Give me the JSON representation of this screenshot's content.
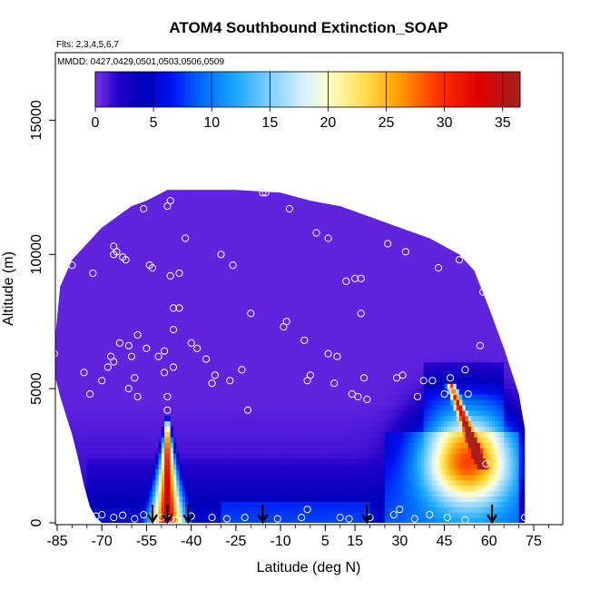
{
  "chart_data": {
    "type": "heatmap",
    "title": "ATOM4 Southbound Extinction_SOAP",
    "flights_label": "Flts: 2,3,4,5,6,7",
    "dates_label": "MMDD: 0427,0429,0501,0503,0506,0509",
    "xlabel": "Latitude (deg N)",
    "ylabel": "Altitude (m)",
    "xlim": [
      -88,
      82
    ],
    "ylim": [
      0,
      17500
    ],
    "x_ticks": [
      -85,
      -70,
      -55,
      -40,
      -25,
      -10,
      5,
      15,
      30,
      45,
      60,
      75
    ],
    "y_ticks": [
      0,
      5000,
      10000,
      15000
    ],
    "colorbar": {
      "min": 0,
      "max": 36.5,
      "ticks": [
        0,
        5,
        10,
        15,
        20,
        25,
        30,
        35
      ]
    },
    "coverage_top_m": [
      [
        -86,
        6500
      ],
      [
        -84,
        8800
      ],
      [
        -80,
        9800
      ],
      [
        -75,
        10400
      ],
      [
        -70,
        11000
      ],
      [
        -65,
        11400
      ],
      [
        -60,
        11800
      ],
      [
        -55,
        12000
      ],
      [
        -48,
        12400
      ],
      [
        -40,
        12400
      ],
      [
        -25,
        12400
      ],
      [
        -10,
        12300
      ],
      [
        0,
        12000
      ],
      [
        10,
        11800
      ],
      [
        20,
        11400
      ],
      [
        30,
        11000
      ],
      [
        40,
        10600
      ],
      [
        50,
        10000
      ],
      [
        55,
        9400
      ],
      [
        60,
        8000
      ],
      [
        65,
        6500
      ],
      [
        70,
        4800
      ],
      [
        72,
        3500
      ]
    ],
    "coverage_bottom_m": [
      [
        -86,
        5600
      ],
      [
        -84,
        4700
      ],
      [
        -82,
        4000
      ],
      [
        -80,
        3300
      ],
      [
        -78,
        2400
      ],
      [
        -76,
        1400
      ],
      [
        -74,
        600
      ],
      [
        -72,
        200
      ],
      [
        -70,
        0
      ],
      [
        72,
        0
      ]
    ],
    "plumes": [
      {
        "name": "southern-hemisphere-tropical-plume",
        "lat_center": -48,
        "lat_halfwidth_base": 10,
        "alt_top_m": 4200,
        "peak": 34
      },
      {
        "name": "northern-midlatitude-plume",
        "lat_center": 53,
        "lat_halfwidth": 15,
        "alt_center_m": 2400,
        "alt_halfwidth_m": 1700,
        "peak": 24
      },
      {
        "name": "northern-lofted-streak",
        "lat_from": 47,
        "alt_from_m": 5200,
        "lat_to": 58,
        "alt_to_m": 2000,
        "peak": 26
      }
    ],
    "sample_points": [
      [
        -86,
        6300
      ],
      [
        -85,
        9600
      ],
      [
        -80,
        9600
      ],
      [
        -76,
        5600
      ],
      [
        -74,
        4800
      ],
      [
        -73,
        9300
      ],
      [
        -70,
        5300
      ],
      [
        -68,
        5800
      ],
      [
        -67,
        6200
      ],
      [
        -66,
        6000
      ],
      [
        -66,
        10000
      ],
      [
        -66,
        10300
      ],
      [
        -65,
        10100
      ],
      [
        -64,
        6700
      ],
      [
        -63,
        9900
      ],
      [
        -62,
        9800
      ],
      [
        -61,
        5000
      ],
      [
        -61,
        6600
      ],
      [
        -60,
        6200
      ],
      [
        -59,
        5400
      ],
      [
        -58,
        4700
      ],
      [
        -58,
        7000
      ],
      [
        -56,
        11700
      ],
      [
        -55,
        6500
      ],
      [
        -54,
        9600
      ],
      [
        -53,
        9500
      ],
      [
        -51,
        6200
      ],
      [
        -49,
        5600
      ],
      [
        -49,
        6400
      ],
      [
        -48,
        11800
      ],
      [
        -48,
        4700
      ],
      [
        -48,
        4200
      ],
      [
        -47,
        9200
      ],
      [
        -47,
        12000
      ],
      [
        -46,
        7200
      ],
      [
        -46,
        8000
      ],
      [
        -46,
        5800
      ],
      [
        -44,
        9300
      ],
      [
        -44,
        8000
      ],
      [
        -42,
        10600
      ],
      [
        -40,
        6700
      ],
      [
        -38,
        6500
      ],
      [
        -35,
        6100
      ],
      [
        -33,
        5200
      ],
      [
        -32,
        5500
      ],
      [
        -30,
        10000
      ],
      [
        -27,
        5300
      ],
      [
        -26,
        9600
      ],
      [
        -23,
        5700
      ],
      [
        -21,
        4200
      ],
      [
        -20,
        7800
      ],
      [
        -16,
        12300
      ],
      [
        -15,
        12300
      ],
      [
        -9,
        7300
      ],
      [
        -8,
        7500
      ],
      [
        -7,
        11700
      ],
      [
        -2,
        6800
      ],
      [
        -1,
        5300
      ],
      [
        0,
        5500
      ],
      [
        2,
        10800
      ],
      [
        6,
        6300
      ],
      [
        6,
        10600
      ],
      [
        8,
        5200
      ],
      [
        9,
        6200
      ],
      [
        12,
        9000
      ],
      [
        14,
        4800
      ],
      [
        15,
        9100
      ],
      [
        16,
        4700
      ],
      [
        17,
        9100
      ],
      [
        17,
        7800
      ],
      [
        18,
        5400
      ],
      [
        19,
        4600
      ],
      [
        24,
        11700
      ],
      [
        26,
        10400
      ],
      [
        29,
        5400
      ],
      [
        31,
        5500
      ],
      [
        32,
        10100
      ],
      [
        36,
        4700
      ],
      [
        38,
        5300
      ],
      [
        41,
        5300
      ],
      [
        43,
        9500
      ],
      [
        45,
        4800
      ],
      [
        47,
        5400
      ],
      [
        48,
        4900
      ],
      [
        50,
        9800
      ],
      [
        52,
        5700
      ],
      [
        53,
        4800
      ],
      [
        55,
        9600
      ],
      [
        57,
        6600
      ],
      [
        58,
        8600
      ],
      [
        59,
        2200
      ],
      [
        -78,
        150
      ],
      [
        -75,
        200
      ],
      [
        -72,
        250
      ],
      [
        -70,
        300
      ],
      [
        -66,
        200
      ],
      [
        -63,
        280
      ],
      [
        -59,
        150
      ],
      [
        -56,
        300
      ],
      [
        -52,
        100
      ],
      [
        -50,
        200
      ],
      [
        -47,
        150
      ],
      [
        -45,
        100
      ],
      [
        -40,
        250
      ],
      [
        -33,
        200
      ],
      [
        -28,
        150
      ],
      [
        -22,
        200
      ],
      [
        -11,
        150
      ],
      [
        -3,
        200
      ],
      [
        -1,
        500
      ],
      [
        10,
        200
      ],
      [
        13,
        150
      ],
      [
        20,
        200
      ],
      [
        28,
        300
      ],
      [
        30,
        500
      ],
      [
        35,
        150
      ],
      [
        40,
        300
      ],
      [
        46,
        200
      ],
      [
        52,
        100
      ],
      [
        57,
        1100
      ],
      [
        72,
        200
      ]
    ],
    "southbound_arrows_lat": [
      -53,
      -48,
      -41,
      -16,
      19,
      61
    ]
  }
}
